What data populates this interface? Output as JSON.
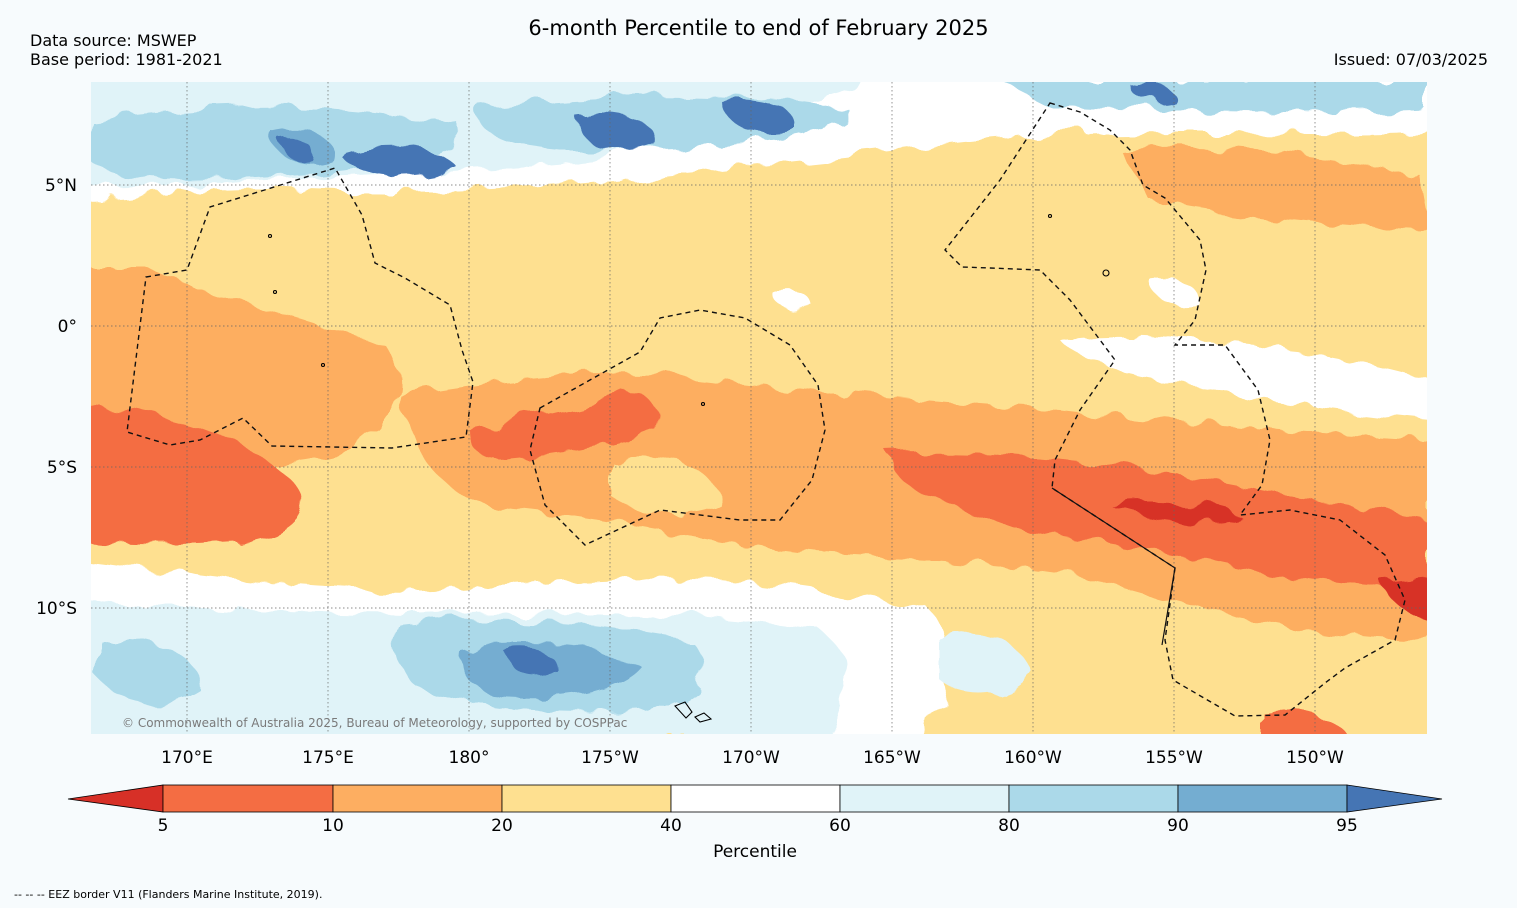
{
  "header": {
    "title": "6-month Percentile to end of February 2025",
    "data_source": "Data source: MSWEP",
    "base_period": "Base period: 1981-2021",
    "issued": "Issued: 07/03/2025"
  },
  "map": {
    "lat_ticks": [
      "5°N",
      "0°",
      "5°S",
      "10°S"
    ],
    "lon_ticks": [
      "170°E",
      "175°E",
      "180°",
      "175°W",
      "170°W",
      "165°W",
      "160°W",
      "155°W",
      "150°W"
    ],
    "credit": "© Commonwealth of Australia 2025, Bureau of Meteorology, supported by COSPPac"
  },
  "colorbar": {
    "label": "Percentile",
    "ticks": [
      "5",
      "10",
      "20",
      "40",
      "60",
      "80",
      "90",
      "95"
    ],
    "colors": [
      "#d73027",
      "#f46d43",
      "#fdae61",
      "#fee090",
      "#ffffff",
      "#e0f3f8",
      "#abd9e9",
      "#74add1",
      "#4575b4"
    ]
  },
  "footnote": "-- -- -- EEZ border V11 (Flanders Marine Institute, 2019)."
}
